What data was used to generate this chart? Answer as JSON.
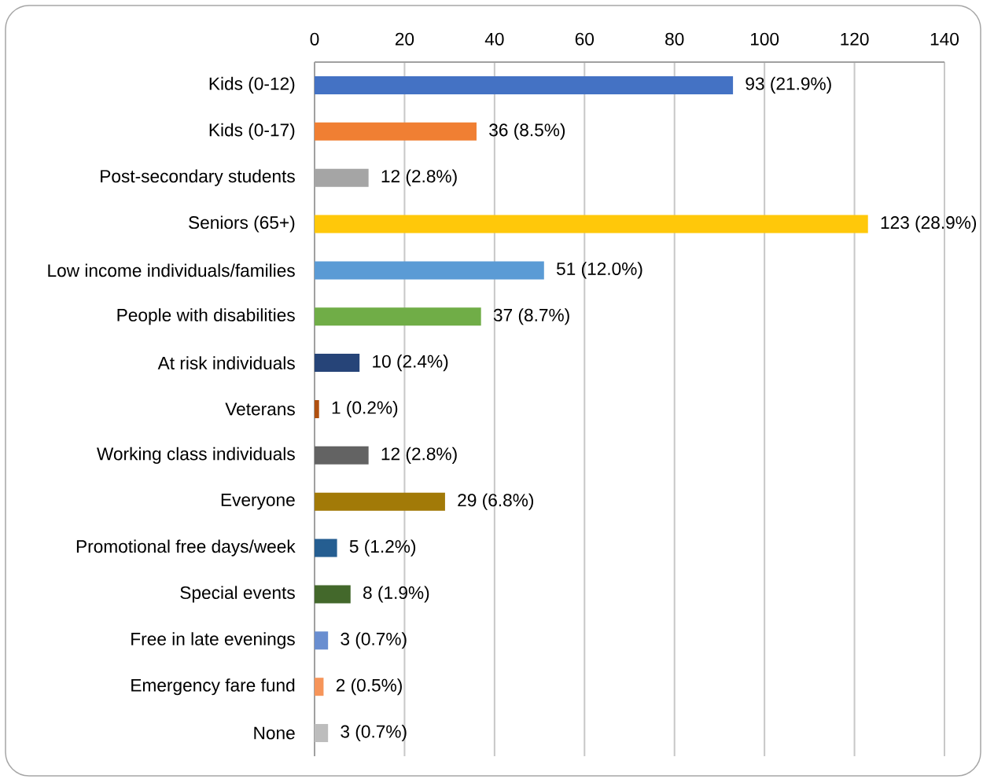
{
  "chart_data": {
    "type": "bar",
    "orientation": "horizontal",
    "categories": [
      "Kids (0-12)",
      "Kids (0-17)",
      "Post-secondary students",
      "Seniors (65+)",
      "Low income individuals/families",
      "People with disabilities",
      "At risk individuals",
      "Veterans",
      "Working class individuals",
      "Everyone",
      "Promotional free days/week",
      "Special events",
      "Free in late evenings",
      "Emergency fare fund",
      "None"
    ],
    "values": [
      93,
      36,
      12,
      123,
      51,
      37,
      10,
      1,
      12,
      29,
      5,
      8,
      3,
      2,
      3
    ],
    "value_labels": [
      "93 (21.9%)",
      "36 (8.5%)",
      "12 (2.8%)",
      "123 (28.9%)",
      "51 (12.0%)",
      "37 (8.7%)",
      "10 (2.4%)",
      "1 (0.2%)",
      "12 (2.8%)",
      "29 (6.8%)",
      "5 (1.2%)",
      "8 (1.9%)",
      "3 (0.7%)",
      "2 (0.5%)",
      "3 (0.7%)"
    ],
    "colors": [
      "#4472c4",
      "#f07f33",
      "#a5a5a5",
      "#ffc80a",
      "#5b9bd5",
      "#70ad47",
      "#264478",
      "#b0500f",
      "#636363",
      "#a27a08",
      "#255e91",
      "#43682b",
      "#698ed0",
      "#f6955a",
      "#bdbdbd"
    ],
    "xlim": [
      0,
      140
    ],
    "xticks": [
      0,
      20,
      40,
      60,
      80,
      100,
      120,
      140
    ],
    "grid": "x"
  }
}
